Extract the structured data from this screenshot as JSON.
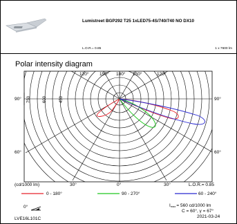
{
  "header": {
    "product_title": "Lumistreet BGP292 T25 1xLED75-4S/740/740 NO DX10",
    "lor": "L.O.R.= 0.85",
    "lamp_flux": "1 x 7600 lm",
    "luminaire_icon": "streetlight-luminaire-icon"
  },
  "diagram": {
    "title": "Polar intensity diagram",
    "angle_labels": {
      "top_left_120": "120°",
      "top_left_150": "150°",
      "top_180": "180°",
      "top_right_150": "150°",
      "top_right_120": "120°",
      "left_90": "90°",
      "right_90": "90°",
      "left_60": "60°",
      "right_60": "60°",
      "bottom_left_30": "30°",
      "bottom_0": "0°",
      "bottom_right_30": "30°"
    },
    "ring_labels": [
      "750",
      "600",
      "450"
    ]
  },
  "legend": {
    "unit": "(cd/1000 lm)",
    "lor": "L.O.R.= 0.85",
    "entries": [
      {
        "label": "0 - 180°",
        "color": "#e8202a"
      },
      {
        "label": "90 - 270°",
        "color": "#1ec81e"
      },
      {
        "label": "60 - 240°",
        "color": "#2828d0"
      }
    ]
  },
  "footer": {
    "angle_icon_label": "0°",
    "angle_icon": "tilt-angle-icon",
    "imax_line": "I max = 560 cd/1000 lm",
    "imax_prefix": "I",
    "imax_sub": "max",
    "imax_value": "= 560 cd/1000 lm",
    "c_gamma": "C = 60 °, γ = 67°",
    "c_text": "C = 60",
    "gamma_text": "°, γ = 67°",
    "code": "LVE16L101C",
    "date": "2021-03-24"
  },
  "colors": {
    "red": "#e8202a",
    "green": "#1ec81e",
    "blue": "#2828d0"
  }
}
